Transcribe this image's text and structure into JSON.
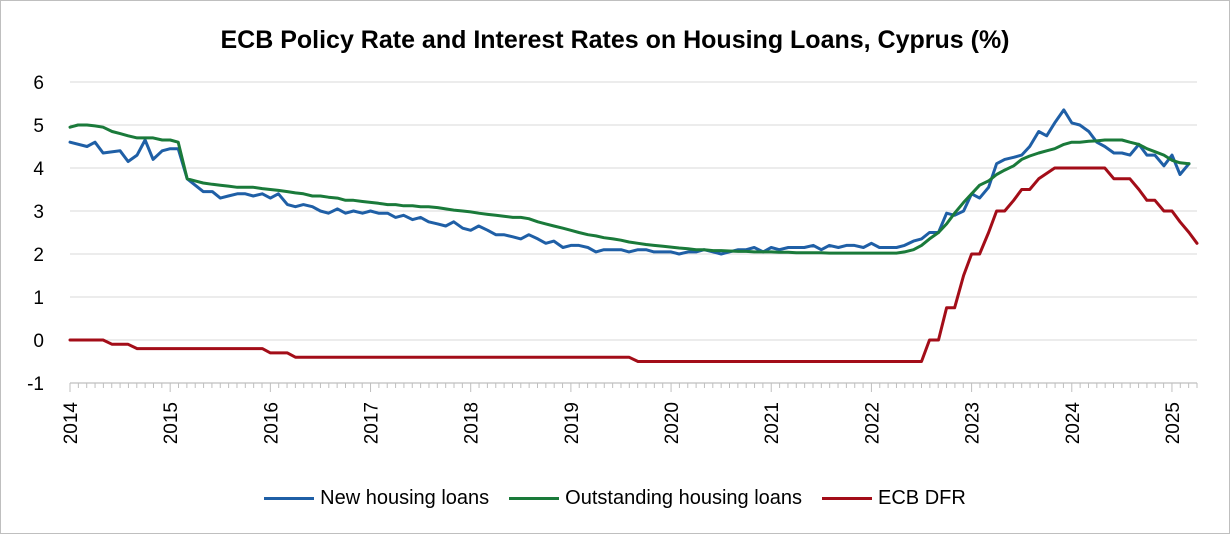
{
  "chart_data": {
    "type": "line",
    "title": "ECB Policy Rate and Interest Rates on Housing Loans, Cyprus (%)",
    "xlabel": "",
    "ylabel": "",
    "ylim": [
      -1,
      6
    ],
    "xlim": [
      2014.0,
      2025.25
    ],
    "y_ticks": [
      "6",
      "5",
      "4",
      "3",
      "2",
      "1",
      "0",
      "-1"
    ],
    "x_ticks": [
      "2014",
      "2015",
      "2016",
      "2017",
      "2018",
      "2019",
      "2020",
      "2021",
      "2022",
      "2023",
      "2024",
      "2025"
    ],
    "legend_position": "bottom",
    "grid": true,
    "series": [
      {
        "name": "New housing loans",
        "color": "#1f5fa6",
        "x": [
          2014.0,
          2014.17,
          2014.25,
          2014.33,
          2014.5,
          2014.58,
          2014.67,
          2014.75,
          2014.83,
          2014.92,
          2015.0,
          2015.08,
          2015.17,
          2015.25,
          2015.33,
          2015.42,
          2015.5,
          2015.58,
          2015.67,
          2015.75,
          2015.83,
          2015.92,
          2016.0,
          2016.08,
          2016.17,
          2016.25,
          2016.33,
          2016.42,
          2016.5,
          2016.58,
          2016.67,
          2016.75,
          2016.83,
          2016.92,
          2017.0,
          2017.08,
          2017.17,
          2017.25,
          2017.33,
          2017.42,
          2017.5,
          2017.58,
          2017.67,
          2017.75,
          2017.83,
          2017.92,
          2018.0,
          2018.08,
          2018.17,
          2018.25,
          2018.33,
          2018.42,
          2018.5,
          2018.58,
          2018.67,
          2018.75,
          2018.83,
          2018.92,
          2019.0,
          2019.08,
          2019.17,
          2019.25,
          2019.33,
          2019.42,
          2019.5,
          2019.58,
          2019.67,
          2019.75,
          2019.83,
          2019.92,
          2020.0,
          2020.08,
          2020.17,
          2020.25,
          2020.33,
          2020.42,
          2020.5,
          2020.58,
          2020.67,
          2020.75,
          2020.83,
          2020.92,
          2021.0,
          2021.08,
          2021.17,
          2021.25,
          2021.33,
          2021.42,
          2021.5,
          2021.58,
          2021.67,
          2021.75,
          2021.83,
          2021.92,
          2022.0,
          2022.08,
          2022.17,
          2022.25,
          2022.33,
          2022.42,
          2022.5,
          2022.58,
          2022.67,
          2022.75,
          2022.83,
          2022.92,
          2023.0,
          2023.08,
          2023.17,
          2023.25,
          2023.33,
          2023.42,
          2023.5,
          2023.58,
          2023.67,
          2023.75,
          2023.83,
          2023.92,
          2024.0,
          2024.08,
          2024.17,
          2024.25,
          2024.33,
          2024.42,
          2024.5,
          2024.58,
          2024.67,
          2024.75,
          2024.83,
          2024.92,
          2025.0,
          2025.08,
          2025.17
        ],
        "values": [
          4.6,
          4.5,
          4.6,
          4.35,
          4.4,
          4.15,
          4.3,
          4.65,
          4.2,
          4.4,
          4.45,
          4.45,
          3.75,
          3.6,
          3.45,
          3.45,
          3.3,
          3.35,
          3.4,
          3.4,
          3.35,
          3.4,
          3.3,
          3.4,
          3.15,
          3.1,
          3.15,
          3.1,
          3.0,
          2.95,
          3.05,
          2.95,
          3.0,
          2.95,
          3.0,
          2.95,
          2.95,
          2.85,
          2.9,
          2.8,
          2.85,
          2.75,
          2.7,
          2.65,
          2.75,
          2.6,
          2.55,
          2.65,
          2.55,
          2.45,
          2.45,
          2.4,
          2.35,
          2.45,
          2.35,
          2.25,
          2.3,
          2.15,
          2.2,
          2.2,
          2.15,
          2.05,
          2.1,
          2.1,
          2.1,
          2.05,
          2.1,
          2.1,
          2.05,
          2.05,
          2.05,
          2.0,
          2.05,
          2.05,
          2.1,
          2.05,
          2.0,
          2.05,
          2.1,
          2.1,
          2.15,
          2.05,
          2.15,
          2.1,
          2.15,
          2.15,
          2.15,
          2.2,
          2.1,
          2.2,
          2.15,
          2.2,
          2.2,
          2.15,
          2.25,
          2.15,
          2.15,
          2.15,
          2.2,
          2.3,
          2.35,
          2.5,
          2.5,
          2.95,
          2.9,
          3.0,
          3.4,
          3.3,
          3.55,
          4.1,
          4.2,
          4.25,
          4.3,
          4.5,
          4.85,
          4.75,
          5.05,
          5.35,
          5.05,
          5.0,
          4.85,
          4.6,
          4.5,
          4.35,
          4.35,
          4.3,
          4.55,
          4.3,
          4.3,
          4.05,
          4.3,
          3.85,
          4.1
        ]
      },
      {
        "name": "Outstanding housing loans",
        "color": "#1a7a3a",
        "x": [
          2014.0,
          2014.08,
          2014.17,
          2014.25,
          2014.33,
          2014.42,
          2014.5,
          2014.58,
          2014.67,
          2014.75,
          2014.83,
          2014.92,
          2015.0,
          2015.08,
          2015.17,
          2015.25,
          2015.33,
          2015.42,
          2015.5,
          2015.58,
          2015.67,
          2015.75,
          2015.83,
          2015.92,
          2016.0,
          2016.08,
          2016.17,
          2016.25,
          2016.33,
          2016.42,
          2016.5,
          2016.58,
          2016.67,
          2016.75,
          2016.83,
          2016.92,
          2017.0,
          2017.08,
          2017.17,
          2017.25,
          2017.33,
          2017.42,
          2017.5,
          2017.58,
          2017.67,
          2017.75,
          2017.83,
          2017.92,
          2018.0,
          2018.08,
          2018.17,
          2018.25,
          2018.33,
          2018.42,
          2018.5,
          2018.58,
          2018.67,
          2018.75,
          2018.83,
          2018.92,
          2019.0,
          2019.08,
          2019.17,
          2019.25,
          2019.33,
          2019.42,
          2019.5,
          2019.58,
          2019.67,
          2019.75,
          2019.83,
          2019.92,
          2020.0,
          2020.08,
          2020.17,
          2020.25,
          2020.33,
          2020.42,
          2020.5,
          2020.58,
          2020.67,
          2020.75,
          2020.83,
          2020.92,
          2021.0,
          2021.08,
          2021.17,
          2021.25,
          2021.33,
          2021.42,
          2021.5,
          2021.58,
          2021.67,
          2021.75,
          2021.83,
          2021.92,
          2022.0,
          2022.08,
          2022.17,
          2022.25,
          2022.33,
          2022.42,
          2022.5,
          2022.58,
          2022.67,
          2022.75,
          2022.83,
          2022.92,
          2023.0,
          2023.08,
          2023.17,
          2023.25,
          2023.33,
          2023.42,
          2023.5,
          2023.58,
          2023.67,
          2023.75,
          2023.83,
          2023.92,
          2024.0,
          2024.08,
          2024.17,
          2024.25,
          2024.33,
          2024.42,
          2024.5,
          2024.58,
          2024.67,
          2024.75,
          2024.83,
          2024.92,
          2025.0,
          2025.08,
          2025.17
        ],
        "values": [
          4.95,
          5.0,
          5.0,
          4.98,
          4.95,
          4.85,
          4.8,
          4.75,
          4.7,
          4.7,
          4.7,
          4.65,
          4.65,
          4.6,
          3.75,
          3.7,
          3.65,
          3.62,
          3.6,
          3.58,
          3.55,
          3.55,
          3.55,
          3.52,
          3.5,
          3.48,
          3.45,
          3.42,
          3.4,
          3.35,
          3.35,
          3.32,
          3.3,
          3.25,
          3.25,
          3.22,
          3.2,
          3.18,
          3.15,
          3.15,
          3.12,
          3.12,
          3.1,
          3.1,
          3.08,
          3.05,
          3.02,
          3.0,
          2.98,
          2.95,
          2.92,
          2.9,
          2.88,
          2.85,
          2.85,
          2.82,
          2.75,
          2.7,
          2.65,
          2.6,
          2.55,
          2.5,
          2.45,
          2.42,
          2.38,
          2.35,
          2.32,
          2.28,
          2.25,
          2.22,
          2.2,
          2.18,
          2.16,
          2.14,
          2.12,
          2.1,
          2.1,
          2.08,
          2.08,
          2.07,
          2.06,
          2.06,
          2.05,
          2.05,
          2.05,
          2.04,
          2.04,
          2.03,
          2.03,
          2.03,
          2.03,
          2.02,
          2.02,
          2.02,
          2.02,
          2.02,
          2.02,
          2.02,
          2.02,
          2.02,
          2.05,
          2.1,
          2.2,
          2.35,
          2.5,
          2.7,
          2.95,
          3.2,
          3.4,
          3.6,
          3.7,
          3.85,
          3.95,
          4.05,
          4.2,
          4.28,
          4.35,
          4.4,
          4.45,
          4.55,
          4.6,
          4.6,
          4.62,
          4.63,
          4.65,
          4.65,
          4.65,
          4.6,
          4.55,
          4.45,
          4.38,
          4.3,
          4.18,
          4.12,
          4.1
        ]
      },
      {
        "name": "ECB DFR",
        "color": "#a30d18",
        "x": [
          2014.0,
          2014.33,
          2014.42,
          2014.58,
          2014.67,
          2015.92,
          2016.0,
          2016.17,
          2016.25,
          2019.58,
          2019.67,
          2022.5,
          2022.58,
          2022.67,
          2022.75,
          2022.83,
          2022.92,
          2023.0,
          2023.08,
          2023.17,
          2023.25,
          2023.33,
          2023.42,
          2023.5,
          2023.58,
          2023.67,
          2023.83,
          2024.33,
          2024.42,
          2024.58,
          2024.67,
          2024.75,
          2024.83,
          2024.92,
          2025.0,
          2025.08,
          2025.17,
          2025.25
        ],
        "values": [
          0.0,
          0.0,
          -0.1,
          -0.1,
          -0.2,
          -0.2,
          -0.3,
          -0.3,
          -0.4,
          -0.4,
          -0.5,
          -0.5,
          0.0,
          0.0,
          0.75,
          0.75,
          1.5,
          2.0,
          2.0,
          2.5,
          3.0,
          3.0,
          3.25,
          3.5,
          3.5,
          3.75,
          4.0,
          4.0,
          3.75,
          3.75,
          3.5,
          3.25,
          3.25,
          3.0,
          3.0,
          2.75,
          2.5,
          2.25
        ]
      }
    ]
  }
}
